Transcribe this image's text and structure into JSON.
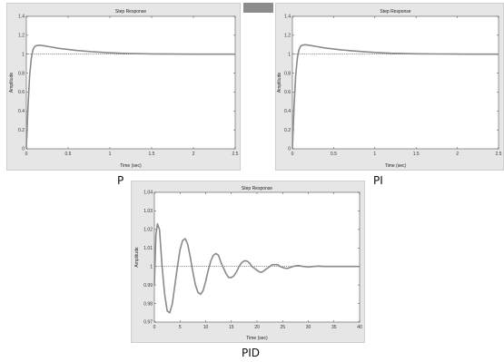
{
  "captions": {
    "p": "P",
    "pi": "PI",
    "pid": "PID"
  },
  "chart_data": [
    {
      "id": "p",
      "type": "line",
      "title": "Step Response",
      "xlabel": "Time (sec)",
      "ylabel": "Amplitude",
      "xlim": [
        0,
        2.5
      ],
      "ylim": [
        0,
        1.4
      ],
      "xticks": [
        0,
        0.5,
        1,
        1.5,
        2,
        2.5
      ],
      "xtick_labels": [
        "0",
        "0.5",
        "1",
        "1.5",
        "2",
        "2.5"
      ],
      "yticks": [
        0,
        0.2,
        0.4,
        0.6,
        0.8,
        1,
        1.2,
        1.4
      ],
      "ytick_labels": [
        "0",
        "0.2",
        "0.4",
        "0.6",
        "0.8",
        "1",
        "1.2",
        "1.4"
      ],
      "reference_line": 1,
      "series": [
        {
          "x": [
            0,
            0.02,
            0.04,
            0.06,
            0.08,
            0.1,
            0.12,
            0.15,
            0.2,
            0.3,
            0.4,
            0.6,
            0.8,
            1.0,
            1.2,
            1.5,
            1.8,
            2.0,
            2.2,
            2.5
          ],
          "y": [
            0,
            0.45,
            0.78,
            0.96,
            1.05,
            1.08,
            1.09,
            1.095,
            1.09,
            1.075,
            1.06,
            1.04,
            1.025,
            1.015,
            1.008,
            1.003,
            1.001,
            1.0,
            1.0,
            1.0
          ]
        }
      ]
    },
    {
      "id": "pi",
      "type": "line",
      "title": "Step Response",
      "xlabel": "Time (sec)",
      "ylabel": "Amplitude",
      "xlim": [
        0,
        2.5
      ],
      "ylim": [
        0,
        1.4
      ],
      "xticks": [
        0,
        0.5,
        1,
        1.5,
        2,
        2.5
      ],
      "xtick_labels": [
        "0",
        "0.5",
        "1",
        "1.5",
        "2",
        "2.5"
      ],
      "yticks": [
        0,
        0.2,
        0.4,
        0.6,
        0.8,
        1,
        1.2,
        1.4
      ],
      "ytick_labels": [
        "0",
        "0.2",
        "0.4",
        "0.6",
        "0.8",
        "1",
        "1.2",
        "1.4"
      ],
      "reference_line": 1,
      "series": [
        {
          "x": [
            0,
            0.02,
            0.04,
            0.06,
            0.08,
            0.1,
            0.12,
            0.15,
            0.2,
            0.3,
            0.4,
            0.6,
            0.8,
            1.0,
            1.2,
            1.5,
            1.8,
            2.0,
            2.2,
            2.5
          ],
          "y": [
            0,
            0.45,
            0.78,
            0.96,
            1.05,
            1.085,
            1.095,
            1.1,
            1.095,
            1.08,
            1.065,
            1.045,
            1.03,
            1.018,
            1.01,
            1.004,
            1.002,
            1.001,
            1.0,
            1.0
          ]
        }
      ]
    },
    {
      "id": "pid",
      "type": "line",
      "title": "Step Response",
      "xlabel": "Time (sec)",
      "ylabel": "Amplitude",
      "xlim": [
        0,
        40
      ],
      "ylim": [
        0.97,
        1.04
      ],
      "xticks": [
        0,
        5,
        10,
        15,
        20,
        25,
        30,
        35,
        40
      ],
      "xtick_labels": [
        "0",
        "5",
        "10",
        "15",
        "20",
        "25",
        "30",
        "35",
        "40"
      ],
      "yticks": [
        0.97,
        0.98,
        0.99,
        1,
        1.01,
        1.02,
        1.03,
        1.04
      ],
      "ytick_labels": [
        "0.97",
        "0.98",
        "0.99",
        "1",
        "1.01",
        "1.02",
        "1.03",
        "1.04"
      ],
      "reference_line": 1,
      "series": [
        {
          "x": [
            0,
            0.3,
            0.6,
            1.0,
            1.5,
            2.0,
            2.5,
            3.0,
            3.5,
            4.0,
            4.5,
            5.0,
            5.5,
            6.0,
            6.5,
            7.0,
            7.5,
            8.0,
            8.5,
            9.0,
            9.5,
            10.0,
            10.5,
            11.0,
            11.5,
            12.0,
            12.5,
            13.0,
            13.5,
            14.0,
            14.5,
            15.0,
            15.5,
            16.0,
            16.5,
            17.0,
            17.5,
            18.0,
            18.5,
            19.0,
            19.5,
            20.0,
            20.5,
            21.0,
            21.5,
            22.0,
            22.5,
            23.0,
            23.5,
            24.0,
            24.5,
            25.0,
            25.5,
            26.0,
            27.0,
            28.0,
            29.0,
            30.0,
            31.0,
            32.0,
            33.0,
            34.0,
            35.0,
            36.0,
            37.0,
            38.0,
            39.0,
            40.0
          ],
          "y": [
            0.99,
            1.017,
            1.023,
            1.02,
            1.0,
            0.985,
            0.976,
            0.975,
            0.98,
            0.99,
            1.0,
            1.009,
            1.014,
            1.015,
            1.012,
            1.005,
            0.997,
            0.99,
            0.986,
            0.985,
            0.987,
            0.992,
            0.998,
            1.003,
            1.006,
            1.007,
            1.006,
            1.002,
            0.999,
            0.996,
            0.994,
            0.994,
            0.995,
            0.997,
            1.0,
            1.002,
            1.003,
            1.003,
            1.002,
            1.0,
            0.999,
            0.998,
            0.997,
            0.997,
            0.998,
            0.999,
            1.0,
            1.001,
            1.001,
            1.001,
            1.0,
            0.9995,
            0.999,
            0.999,
            1.0,
            1.0005,
            1.0,
            0.9997,
            1.0,
            1.0002,
            1.0,
            1.0,
            1.0,
            1.0,
            1.0,
            1.0,
            1.0,
            1.0
          ]
        }
      ]
    }
  ]
}
